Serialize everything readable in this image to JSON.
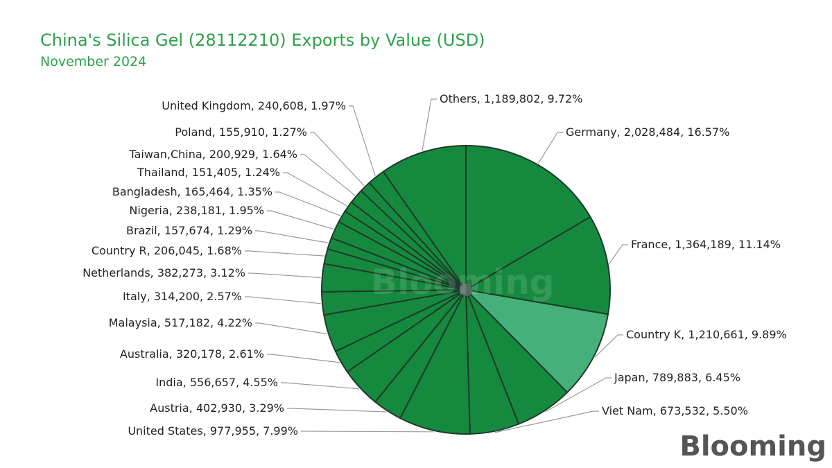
{
  "brand": "Blooming",
  "colors": {
    "title": "#2ca24a",
    "slice": "#158a3e",
    "highlight": "#45b07a",
    "stroke": "#1e3a2a",
    "leader": "#9a9a9a"
  },
  "chart_data": {
    "type": "pie",
    "title": "China's Silica Gel (28112210) Exports by Value (USD)",
    "subtitle": "November 2024",
    "start_angle_deg": 0,
    "direction": "clockwise",
    "slices": [
      {
        "label": "Germany",
        "value": 2028484,
        "percent": 16.57,
        "text": "Germany, 2,028,484, 16.57%"
      },
      {
        "label": "France",
        "value": 1364189,
        "percent": 11.14,
        "text": "France, 1,364,189, 11.14%"
      },
      {
        "label": "Country K",
        "value": 1210661,
        "percent": 9.89,
        "text": "Country K, 1,210,661, 9.89%",
        "highlight": true
      },
      {
        "label": "Japan",
        "value": 789883,
        "percent": 6.45,
        "text": "Japan, 789,883, 6.45%"
      },
      {
        "label": "Viet Nam",
        "value": 673532,
        "percent": 5.5,
        "text": "Viet Nam, 673,532, 5.50%"
      },
      {
        "label": "United States",
        "value": 977955,
        "percent": 7.99,
        "text": "United States, 977,955, 7.99%"
      },
      {
        "label": "Austria",
        "value": 402930,
        "percent": 3.29,
        "text": "Austria, 402,930, 3.29%"
      },
      {
        "label": "India",
        "value": 556657,
        "percent": 4.55,
        "text": "India, 556,657, 4.55%"
      },
      {
        "label": "Australia",
        "value": 320178,
        "percent": 2.61,
        "text": "Australia, 320,178, 2.61%"
      },
      {
        "label": "Malaysia",
        "value": 517182,
        "percent": 4.22,
        "text": "Malaysia, 517,182, 4.22%"
      },
      {
        "label": "Italy",
        "value": 314200,
        "percent": 2.57,
        "text": "Italy, 314,200, 2.57%"
      },
      {
        "label": "Netherlands",
        "value": 382273,
        "percent": 3.12,
        "text": "Netherlands, 382,273, 3.12%"
      },
      {
        "label": "Country R",
        "value": 206045,
        "percent": 1.68,
        "text": "Country R, 206,045, 1.68%"
      },
      {
        "label": "Brazil",
        "value": 157674,
        "percent": 1.29,
        "text": "Brazil, 157,674, 1.29%"
      },
      {
        "label": "Nigeria",
        "value": 238181,
        "percent": 1.95,
        "text": "Nigeria, 238,181, 1.95%"
      },
      {
        "label": "Bangladesh",
        "value": 165464,
        "percent": 1.35,
        "text": "Bangladesh, 165,464, 1.35%"
      },
      {
        "label": "Thailand",
        "value": 151405,
        "percent": 1.24,
        "text": "Thailand, 151,405, 1.24%"
      },
      {
        "label": "Taiwan,China",
        "value": 200929,
        "percent": 1.64,
        "text": "Taiwan,China, 200,929, 1.64%"
      },
      {
        "label": "Poland",
        "value": 155910,
        "percent": 1.27,
        "text": "Poland, 155,910, 1.27%"
      },
      {
        "label": "United Kingdom",
        "value": 240608,
        "percent": 1.97,
        "text": "United Kingdom, 240,608, 1.97%"
      },
      {
        "label": "Others",
        "value": 1189802,
        "percent": 9.72,
        "text": "Others, 1,189,802, 9.72%"
      }
    ]
  }
}
